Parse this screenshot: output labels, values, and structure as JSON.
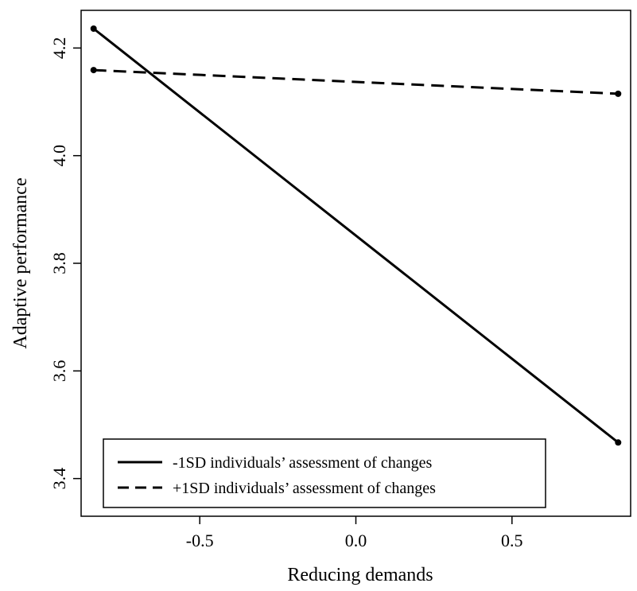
{
  "chart_data": {
    "type": "line",
    "xlabel": "Reducing demands",
    "ylabel": "Adaptive performance",
    "xlim": [
      -0.88,
      0.88
    ],
    "ylim": [
      3.33,
      4.27
    ],
    "xticks": [
      -0.5,
      0.0,
      0.5
    ],
    "xtick_labels": [
      "-0.5",
      "0.0",
      "0.5"
    ],
    "yticks": [
      3.4,
      3.6,
      3.8,
      4.0,
      4.2
    ],
    "ytick_labels": [
      "3.4",
      "3.6",
      "3.8",
      "4.0",
      "4.2"
    ],
    "grid": false,
    "legend_position": "bottom-left",
    "series": [
      {
        "name": "-1SD individuals’ assessment of changes",
        "style": "solid",
        "color": "#000000",
        "x": [
          -0.84,
          0.84
        ],
        "y": [
          4.236,
          3.467
        ]
      },
      {
        "name": "+1SD individuals’ assessment of changes",
        "style": "dashed",
        "color": "#000000",
        "x": [
          -0.84,
          0.84
        ],
        "y": [
          4.159,
          4.115
        ]
      }
    ]
  }
}
